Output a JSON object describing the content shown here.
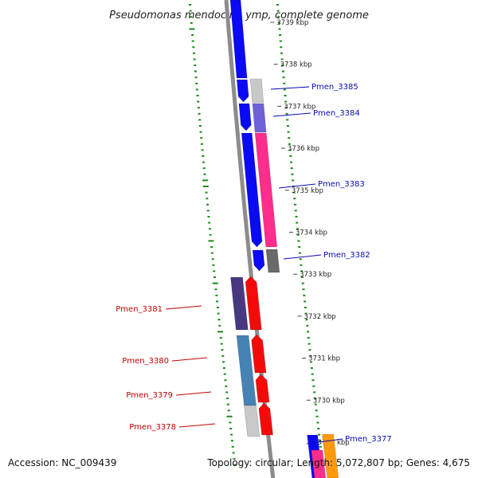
{
  "title": "Pseudomonas mendocina ymp, complete genome",
  "accession": "Accession: NC_009439",
  "summary": "Topology: circular; Length: 5,072,807 bp; Genes: 4,675",
  "colors": {
    "forward_gene": "#0a0af5",
    "reverse_gene": "#f50a0a",
    "backbone": "#8c8c8c",
    "gc_skew_dash": "#1a8a1a",
    "forward_label": "#0a0ab0",
    "reverse_label": "#c00000"
  },
  "ticks": [
    "3739 kbp",
    "3738 kbp",
    "3737 kbp",
    "3736 kbp",
    "3735 kbp",
    "3734 kbp",
    "3733 kbp",
    "3732 kbp",
    "3731 kbp",
    "3730 kbp",
    "3729 kbp"
  ],
  "forward_genes": [
    {
      "label": "Pmen_3385",
      "cog_color": "#c8c8c8"
    },
    {
      "label": "Pmen_3384",
      "cog_color": "#7060d8"
    },
    {
      "label": "Pmen_3383",
      "cog_color": "#ff2d8c"
    },
    {
      "label": "Pmen_3382",
      "cog_color": "#6a6a6a"
    },
    {
      "label": "Pmen_3377",
      "cog_color": "#ff9a10"
    }
  ],
  "reverse_genes": [
    {
      "label": "Pmen_3381",
      "cog_color": "#483880"
    },
    {
      "label": "Pmen_3380",
      "cog_color": "#4682b4"
    },
    {
      "label": "Pmen_3379",
      "cog_color": "#4682b4"
    },
    {
      "label": "Pmen_3378",
      "cog_color": "#c8c8c8"
    }
  ]
}
